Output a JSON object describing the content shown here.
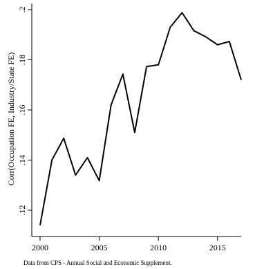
{
  "chart_data": {
    "type": "line",
    "title": "",
    "xlabel": "",
    "ylabel": "Corr(Occupation FE, Industry/State FE)",
    "note": "Data from CPS - Annual Social and Economic Supplement.",
    "x": [
      2000,
      2001,
      2002,
      2003,
      2004,
      2005,
      2006,
      2007,
      2008,
      2009,
      2010,
      2011,
      2012,
      2013,
      2014,
      2015,
      2016,
      2017
    ],
    "series": [
      {
        "values": [
          0.114,
          0.14,
          0.1487,
          0.134,
          0.141,
          0.1318,
          0.162,
          0.1743,
          0.151,
          0.1773,
          0.178,
          0.193,
          0.1988,
          0.1916,
          0.1892,
          0.186,
          0.1873,
          0.172
        ]
      }
    ],
    "xlim": [
      2000,
      2017
    ],
    "ylim": [
      0.112,
      0.2
    ],
    "xticks": [
      2000,
      2005,
      2010,
      2015
    ],
    "xtick_labels": [
      "2000",
      "2005",
      "2010",
      "2015"
    ],
    "yticks": [
      0.12,
      0.14,
      0.16,
      0.18,
      0.2
    ],
    "ytick_labels": [
      ".12",
      ".14",
      ".16",
      ".18",
      ".2"
    ],
    "grid": false,
    "legend": false,
    "line_color": "#000000"
  }
}
